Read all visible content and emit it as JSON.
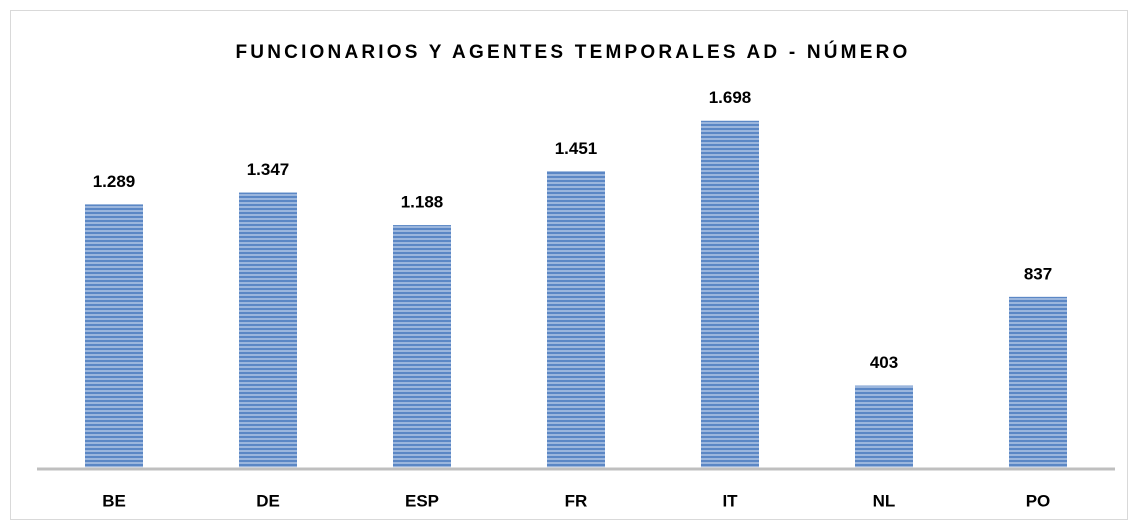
{
  "chart_data": {
    "type": "bar",
    "title": "FUNCIONARIOS Y AGENTES TEMPORALES AD - NÚMERO",
    "categories": [
      "BE",
      "DE",
      "ESP",
      "FR",
      "IT",
      "NL",
      "PO"
    ],
    "values": [
      1289,
      1347,
      1188,
      1451,
      1698,
      403,
      837
    ],
    "value_labels": [
      "1.289",
      "1.347",
      "1.188",
      "1.451",
      "1.698",
      "403",
      "837"
    ],
    "color": "#5b87c5"
  }
}
